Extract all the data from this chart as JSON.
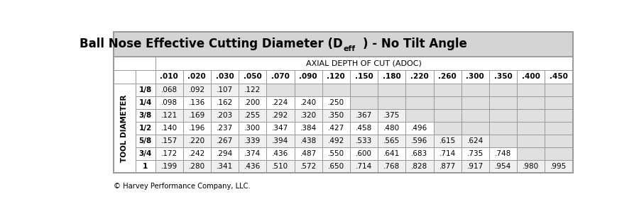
{
  "title_part1": "Ball Nose Effective Cutting Diameter (D",
  "title_sub": "eff",
  "title_part2": ") - No Tilt Angle",
  "adoc_label": "AXIAL DEPTH OF CUT (ADOC)",
  "row_label": "TOOL DIAMETER",
  "col_headers": [
    ".010",
    ".020",
    ".030",
    ".050",
    ".070",
    ".090",
    ".120",
    ".150",
    ".180",
    ".220",
    ".260",
    ".300",
    ".350",
    ".400",
    ".450"
  ],
  "row_headers": [
    "1/8",
    "1/4",
    "3/8",
    "1/2",
    "5/8",
    "3/4",
    "1"
  ],
  "data": [
    [
      ".068",
      ".092",
      ".107",
      ".122",
      "",
      "",
      "",
      "",
      "",
      "",
      "",
      "",
      "",
      "",
      ""
    ],
    [
      ".098",
      ".136",
      ".162",
      ".200",
      ".224",
      ".240",
      ".250",
      "",
      "",
      "",
      "",
      "",
      "",
      "",
      ""
    ],
    [
      ".121",
      ".169",
      ".203",
      ".255",
      ".292",
      ".320",
      ".350",
      ".367",
      ".375",
      "",
      "",
      "",
      "",
      "",
      ""
    ],
    [
      ".140",
      ".196",
      ".237",
      ".300",
      ".347",
      ".384",
      ".427",
      ".458",
      ".480",
      ".496",
      "",
      "",
      "",
      "",
      ""
    ],
    [
      ".157",
      ".220",
      ".267",
      ".339",
      ".394",
      ".438",
      ".492",
      ".533",
      ".565",
      ".596",
      ".615",
      ".624",
      "",
      "",
      ""
    ],
    [
      ".172",
      ".242",
      ".294",
      ".374",
      ".436",
      ".487",
      ".550",
      ".600",
      ".641",
      ".683",
      ".714",
      ".735",
      ".748",
      "",
      ""
    ],
    [
      ".199",
      ".280",
      ".341",
      ".436",
      ".510",
      ".572",
      ".650",
      ".714",
      ".768",
      ".828",
      ".877",
      ".917",
      ".954",
      ".980",
      ".995"
    ]
  ],
  "footer": "© Harvey Performance Company, LLC.",
  "title_bg": "#d4d4d4",
  "row_even_bg": "#efefef",
  "row_odd_bg": "#ffffff",
  "empty_cell_bg": "#e0e0e0",
  "border_color": "#999999",
  "text_color": "#000000"
}
